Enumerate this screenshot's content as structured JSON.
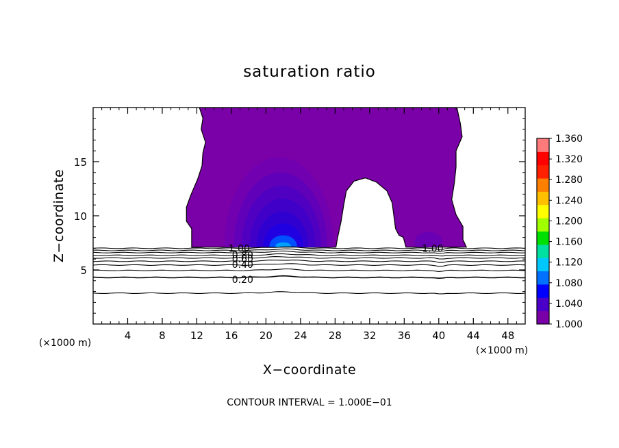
{
  "chart_data": {
    "type": "contour",
    "title": "saturation ratio",
    "xlabel": "X−coordinate",
    "ylabel": "Z−coordinate",
    "x_unit_left": "(×1000 m)",
    "x_unit_right": "(×1000 m)",
    "footer": "CONTOUR INTERVAL = 1.000E−01",
    "xlim": [
      0,
      50
    ],
    "ylim": [
      0,
      20
    ],
    "x_ticks": [
      4,
      8,
      12,
      16,
      20,
      24,
      28,
      32,
      36,
      40,
      44,
      48
    ],
    "y_ticks": [
      5,
      10,
      15
    ],
    "contour_interval": 0.1,
    "contour_labels": [
      {
        "text": "1.00",
        "x": 16.9,
        "z": 7.0
      },
      {
        "text": "0.80",
        "x": 17.3,
        "z": 6.4
      },
      {
        "text": "0.60",
        "x": 17.3,
        "z": 6.0
      },
      {
        "text": "0.40",
        "x": 17.3,
        "z": 5.5
      },
      {
        "text": "0.20",
        "x": 17.3,
        "z": 4.1
      },
      {
        "text": "1.00",
        "x": 39.3,
        "z": 7.0
      }
    ],
    "subsaturated_isolines_z": [
      7.0,
      6.8,
      6.6,
      6.35,
      6.1,
      5.8,
      5.45,
      4.95,
      4.3,
      2.85
    ],
    "colorbar": {
      "min": 1.0,
      "max": 1.36,
      "labels": [
        "1.360",
        "1.320",
        "1.280",
        "1.240",
        "1.200",
        "1.160",
        "1.120",
        "1.080",
        "1.040",
        "1.000"
      ],
      "colors": [
        "#7a00a8",
        "#4a00c8",
        "#0000ff",
        "#0070ff",
        "#00c8ff",
        "#00e0a0",
        "#00e000",
        "#a0ff00",
        "#ffff00",
        "#ffc000",
        "#ff8000",
        "#ff2000",
        "#ff0000",
        "#ff7a7a"
      ]
    },
    "supersaturated_region_color": "#7a00a8",
    "core_colors": [
      "#7000b0",
      "#6000b8",
      "#5000c0",
      "#4000c8",
      "#3000d0",
      "#2000e0",
      "#0050ff",
      "#00a0ff"
    ]
  }
}
